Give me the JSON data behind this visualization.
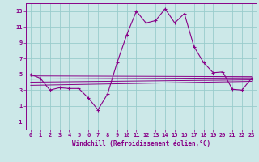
{
  "background_color": "#cce8e8",
  "grid_color": "#99cccc",
  "line_color": "#880088",
  "xlabel": "Windchill (Refroidissement éolien,°C)",
  "xlim": [
    -0.5,
    23.5
  ],
  "ylim": [
    -2.0,
    14.0
  ],
  "yticks": [
    -1,
    1,
    3,
    5,
    7,
    9,
    11,
    13
  ],
  "xticks": [
    0,
    1,
    2,
    3,
    4,
    5,
    6,
    7,
    8,
    9,
    10,
    11,
    12,
    13,
    14,
    15,
    16,
    17,
    18,
    19,
    20,
    21,
    22,
    23
  ],
  "main_x": [
    0,
    1,
    2,
    3,
    4,
    5,
    6,
    7,
    8,
    9,
    10,
    11,
    12,
    13,
    14,
    15,
    16,
    17,
    18,
    19,
    20,
    21,
    22,
    23
  ],
  "main_y": [
    5,
    4.5,
    3.0,
    3.3,
    3.2,
    3.2,
    2.0,
    0.5,
    2.5,
    6.5,
    10.0,
    13.0,
    11.5,
    11.8,
    13.3,
    11.5,
    12.7,
    8.5,
    6.5,
    5.2,
    5.3,
    3.1,
    3.0,
    4.5
  ],
  "reg1_start": 4.8,
  "reg1_end": 4.7,
  "reg2_start": 4.4,
  "reg2_end": 4.55,
  "reg3_start": 4.0,
  "reg3_end": 4.3,
  "reg4_start": 3.6,
  "reg4_end": 4.1
}
